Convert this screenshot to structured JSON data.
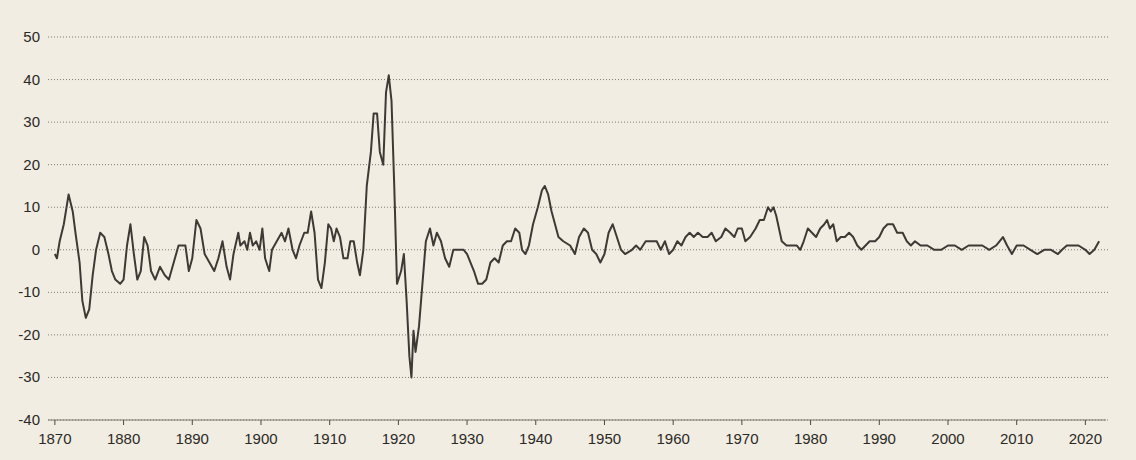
{
  "chart_data": {
    "type": "line",
    "color": "#3d3a36",
    "grid": true,
    "xlim": [
      1869,
      2023
    ],
    "ylim": [
      -40,
      50
    ],
    "xticks": [
      1870,
      1880,
      1890,
      1900,
      1910,
      1920,
      1930,
      1940,
      1950,
      1960,
      1970,
      1980,
      1990,
      2000,
      2010,
      2020
    ],
    "yticks": [
      -40,
      -30,
      -20,
      -10,
      0,
      10,
      20,
      30,
      40,
      50
    ],
    "x": [
      1870,
      1870.3,
      1870.7,
      1871.3,
      1872,
      1872.6,
      1873,
      1873.6,
      1874,
      1874.5,
      1875,
      1875.5,
      1876,
      1876.6,
      1877.2,
      1877.8,
      1878.3,
      1878.8,
      1879.5,
      1880,
      1880.5,
      1881,
      1881.5,
      1882,
      1882.5,
      1883,
      1883.5,
      1884,
      1884.6,
      1885.3,
      1886,
      1886.6,
      1887.3,
      1888,
      1889,
      1889.5,
      1890,
      1890.6,
      1891.2,
      1891.8,
      1892.5,
      1893.2,
      1893.8,
      1894.4,
      1895,
      1895.5,
      1896,
      1896.7,
      1897,
      1897.6,
      1898,
      1898.4,
      1898.8,
      1899.3,
      1899.8,
      1900.2,
      1900.6,
      1901.2,
      1901.6,
      1902.3,
      1903,
      1903.5,
      1904,
      1904.6,
      1905.1,
      1905.6,
      1906.3,
      1906.8,
      1907.3,
      1907.8,
      1908.3,
      1908.8,
      1909.3,
      1909.8,
      1910.2,
      1910.6,
      1911,
      1911.5,
      1912,
      1912.6,
      1913,
      1913.5,
      1914,
      1914.4,
      1914.9,
      1915.4,
      1916,
      1916.4,
      1916.9,
      1917.3,
      1917.8,
      1918.2,
      1918.6,
      1919,
      1919.4,
      1919.8,
      1920.4,
      1920.8,
      1921.2,
      1921.6,
      1921.9,
      1922.2,
      1922.5,
      1923,
      1923.5,
      1924,
      1924.6,
      1925.1,
      1925.6,
      1926.2,
      1926.8,
      1927.4,
      1928,
      1928.8,
      1929.5,
      1930,
      1930.5,
      1931,
      1931.6,
      1932.2,
      1932.8,
      1933.4,
      1934,
      1934.6,
      1935.2,
      1935.8,
      1936.4,
      1937,
      1937.6,
      1938,
      1938.5,
      1939,
      1939.6,
      1940.3,
      1940.9,
      1941.3,
      1941.8,
      1942.3,
      1942.8,
      1943.3,
      1944,
      1945,
      1945.7,
      1946.3,
      1947,
      1947.6,
      1948.2,
      1948.8,
      1949.4,
      1950,
      1950.6,
      1951.2,
      1951.8,
      1952.4,
      1953,
      1954,
      1954.6,
      1955.2,
      1956,
      1957,
      1957.6,
      1958.2,
      1958.8,
      1959.4,
      1960,
      1960.6,
      1961.2,
      1961.8,
      1962.4,
      1963,
      1963.6,
      1964.3,
      1965,
      1965.6,
      1966.2,
      1967,
      1967.6,
      1968.3,
      1968.9,
      1969.4,
      1970,
      1970.5,
      1971.2,
      1972,
      1972.6,
      1973.2,
      1973.8,
      1974.2,
      1974.6,
      1975,
      1975.4,
      1975.8,
      1976.5,
      1977.3,
      1978,
      1978.5,
      1979,
      1979.6,
      1980.2,
      1980.8,
      1981.4,
      1982,
      1982.4,
      1982.8,
      1983.3,
      1983.8,
      1984.4,
      1985,
      1985.6,
      1986.2,
      1986.8,
      1987.4,
      1988,
      1988.6,
      1989.4,
      1990,
      1990.6,
      1991.2,
      1992,
      1992.6,
      1993.4,
      1994,
      1994.6,
      1995.2,
      1996,
      1997,
      1998,
      1999,
      2000,
      2001,
      2002,
      2003,
      2004,
      2005,
      2006,
      2007,
      2008,
      2008.6,
      2009.3,
      2010,
      2011,
      2012,
      2013,
      2014,
      2015,
      2016,
      2016.6,
      2017.3,
      2018,
      2019,
      2020,
      2020.6,
      2021.3,
      2022
    ],
    "values": [
      -1,
      -2,
      2,
      6,
      13,
      9,
      4,
      -3,
      -12,
      -16,
      -14,
      -6,
      0,
      4,
      3,
      -1,
      -5,
      -7,
      -8,
      -7,
      1,
      6,
      -1,
      -7,
      -5,
      3,
      1,
      -5,
      -7,
      -4,
      -6,
      -7,
      -3,
      1,
      1,
      -5,
      -2,
      7,
      5,
      -1,
      -3,
      -5,
      -2,
      2,
      -4,
      -7,
      -1,
      4,
      1,
      2,
      0,
      4,
      1,
      2,
      0,
      5,
      -2,
      -5,
      0,
      2,
      4,
      2,
      5,
      0,
      -2,
      1,
      4,
      4,
      9,
      4,
      -7,
      -9,
      -3,
      6,
      5,
      2,
      5,
      3,
      -2,
      -2,
      2,
      2,
      -3,
      -6,
      0,
      15,
      23,
      32,
      32,
      23,
      20,
      37,
      41,
      35,
      15,
      -8,
      -5,
      -1,
      -12,
      -25,
      -30,
      -19,
      -24,
      -18,
      -8,
      2,
      5,
      1,
      4,
      2,
      -2,
      -4,
      0,
      0,
      0,
      -1,
      -3,
      -5,
      -8,
      -8,
      -7,
      -3,
      -2,
      -3,
      1,
      2,
      2,
      5,
      4,
      0,
      -1,
      1,
      6,
      10,
      14,
      15,
      13,
      9,
      6,
      3,
      2,
      1,
      -1,
      3,
      5,
      4,
      0,
      -1,
      -3,
      -1,
      4,
      6,
      3,
      0,
      -1,
      0,
      1,
      0,
      2,
      2,
      2,
      0,
      2,
      -1,
      0,
      2,
      1,
      3,
      4,
      3,
      4,
      3,
      3,
      4,
      2,
      3,
      5,
      4,
      3,
      5,
      5,
      2,
      3,
      5,
      7,
      7,
      10,
      9,
      10,
      8,
      5,
      2,
      1,
      1,
      1,
      0,
      2,
      5,
      4,
      3,
      5,
      6,
      7,
      5,
      6,
      2,
      3,
      3,
      4,
      3,
      1,
      0,
      1,
      2,
      2,
      3,
      5,
      6,
      6,
      4,
      4,
      2,
      1,
      2,
      1,
      1,
      0,
      0,
      1,
      1,
      0,
      1,
      1,
      1,
      0,
      1,
      3,
      1,
      -1,
      1,
      1,
      0,
      -1,
      0,
      0,
      -1,
      0,
      1,
      1,
      1,
      0,
      -1,
      0,
      2
    ]
  }
}
